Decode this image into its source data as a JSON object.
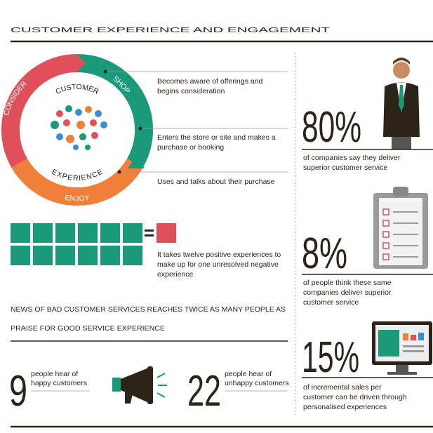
{
  "header": {
    "title": "CUSTOMER EXPERIENCE AND ENGAGEMENT"
  },
  "journey": {
    "center": [
      "CUSTOMER",
      "EXPERIENCE"
    ],
    "stages": [
      {
        "label": "CONSIDER",
        "text": [
          "Becomes aware of offerings and",
          "begins consideration"
        ]
      },
      {
        "label": "SHOP",
        "text": [
          "Enters the store or site and makes a",
          "purchase or booking"
        ]
      },
      {
        "label": "ENJOY",
        "text": [
          "Uses and talks about their purchase"
        ]
      }
    ]
  },
  "ratio": {
    "text": [
      "It takes twelve positive experiences to",
      "make up for one unresolved negative",
      "experience"
    ]
  },
  "news": {
    "headline": [
      "NEWS OF BAD CUSTOMER SERVICES REACHES TWICE AS MANY PEOPLE AS",
      "PRAISE FOR GOOD SERVICE EXPERIENCE"
    ],
    "happy": {
      "number": "9",
      "text": [
        "people hear of",
        "happy customers"
      ]
    },
    "unhappy": {
      "number": "22",
      "text": [
        "people hear of",
        "unhappy customers"
      ]
    }
  },
  "stats": [
    {
      "number": "80%",
      "text": [
        "of companies say they deliver",
        "superior customer service"
      ]
    },
    {
      "number": "8%",
      "text": [
        "of people think these same",
        "companies deliver superior",
        "customer service"
      ]
    },
    {
      "number": "15%",
      "text": [
        "of incremental sales per",
        "customer can be driven through",
        "personalised experiences"
      ]
    }
  ]
}
